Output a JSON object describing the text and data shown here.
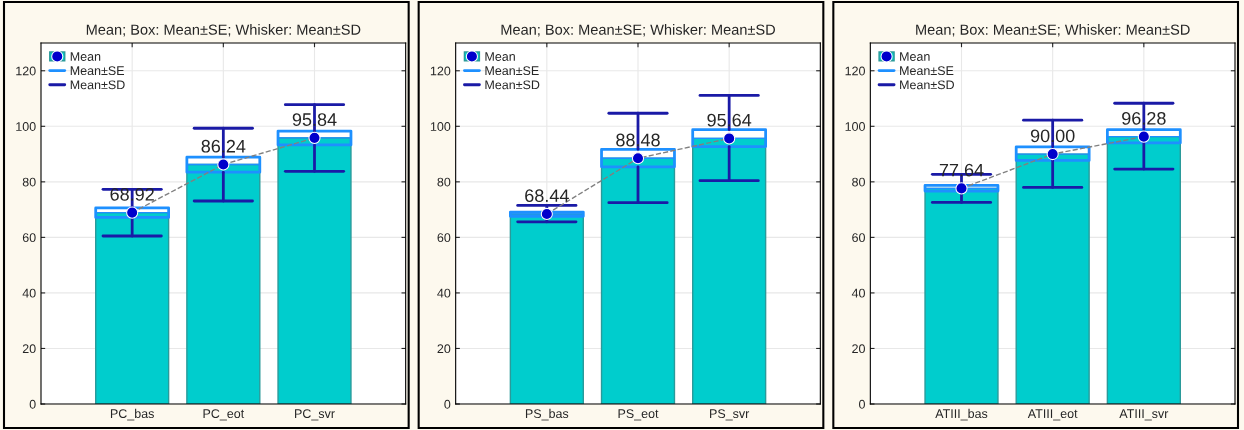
{
  "chart_data": [
    {
      "type": "bar",
      "title": "Mean; Box: Mean±SE; Whisker: Mean±SD",
      "categories": [
        "PC_bas",
        "PC_eot",
        "PC_svr"
      ],
      "ylim": [
        0,
        130
      ],
      "yticks": [
        0,
        20,
        40,
        60,
        80,
        100,
        120
      ],
      "grid": true,
      "legend": "top left",
      "annotations": [
        "Mean±SE",
        "Mean±SD"
      ],
      "series": [
        {
          "color": "#00cdcd",
          "values": [
            68.92,
            86.24,
            95.84
          ],
          "value_labels": [
            "68.92",
            "86.24",
            "95.84"
          ]
        },
        {
          "type": "line",
          "color": "#808080",
          "line_style": "dashed",
          "marker": "none",
          "values": [
            68.92,
            86.24,
            95.84
          ]
        },
        {
          "type": "scatter",
          "name": "Mean",
          "color": "#0000cc",
          "marker": "circle",
          "values": [
            68.92,
            86.24,
            95.84
          ]
        },
        {
          "type": "box",
          "color": "#1e90ff",
          "boxes": [
            {
              "low": 60.5,
              "q1": 67.2,
              "median": 68.92,
              "q3": 70.6,
              "high": 77.3
            },
            {
              "low": 73.1,
              "q1": 83.5,
              "median": 86.24,
              "q3": 88.9,
              "high": 99.3
            },
            {
              "low": 83.8,
              "q1": 93.3,
              "median": 95.84,
              "q3": 98.3,
              "high": 107.8
            }
          ]
        }
      ]
    },
    {
      "type": "bar",
      "title": "Mean; Box: Mean±SE; Whisker: Mean±SD",
      "categories": [
        "PS_bas",
        "PS_eot",
        "PS_svr"
      ],
      "ylim": [
        0,
        130
      ],
      "yticks": [
        0,
        20,
        40,
        60,
        80,
        100,
        120
      ],
      "grid": true,
      "legend": "top left",
      "annotations": [
        "Mean±SE",
        "Mean±SD"
      ],
      "series": [
        {
          "color": "#00cdcd",
          "values": [
            68.44,
            88.48,
            95.64
          ],
          "value_labels": [
            "68.44",
            "88.48",
            "95.64"
          ]
        },
        {
          "type": "line",
          "color": "#808080",
          "line_style": "dashed",
          "marker": "none",
          "values": [
            68.44,
            88.48,
            95.64
          ]
        },
        {
          "type": "scatter",
          "name": "Mean",
          "color": "#0000cc",
          "marker": "circle",
          "values": [
            68.44,
            88.48,
            95.64
          ]
        },
        {
          "type": "box",
          "color": "#1e90ff",
          "boxes": [
            {
              "low": 65.6,
              "q1": 67.6,
              "median": 68.44,
              "q3": 69.1,
              "high": 71.5
            },
            {
              "low": 72.5,
              "q1": 85.4,
              "median": 88.48,
              "q3": 91.7,
              "high": 104.7
            },
            {
              "low": 80.4,
              "q1": 92.7,
              "median": 95.64,
              "q3": 98.8,
              "high": 111.1
            }
          ]
        }
      ]
    },
    {
      "type": "bar",
      "title": "Mean; Box: Mean±SE; Whisker: Mean±SD",
      "categories": [
        "ATIII_bas",
        "ATIII_eot",
        "ATIII_svr"
      ],
      "ylim": [
        0,
        130
      ],
      "yticks": [
        0,
        20,
        40,
        60,
        80,
        100,
        120
      ],
      "grid": true,
      "legend": "top left",
      "annotations": [
        "Mean±SE",
        "Mean±SD"
      ],
      "series": [
        {
          "color": "#00cdcd",
          "values": [
            77.64,
            90.0,
            96.28
          ],
          "value_labels": [
            "77.64",
            "90.00",
            "96.28"
          ]
        },
        {
          "type": "line",
          "color": "#808080",
          "line_style": "dashed",
          "marker": "none",
          "values": [
            77.64,
            90.0,
            96.28
          ]
        },
        {
          "type": "scatter",
          "name": "Mean",
          "color": "#0000cc",
          "marker": "circle",
          "values": [
            77.64,
            90.0,
            96.28
          ]
        },
        {
          "type": "box",
          "color": "#1e90ff",
          "boxes": [
            {
              "low": 72.6,
              "q1": 76.7,
              "median": 77.64,
              "q3": 78.7,
              "high": 82.7
            },
            {
              "low": 78.0,
              "q1": 87.7,
              "median": 90.0,
              "q3": 92.6,
              "high": 102.2
            },
            {
              "low": 84.6,
              "q1": 94.0,
              "median": 96.28,
              "q3": 98.8,
              "high": 108.3
            }
          ]
        }
      ]
    }
  ]
}
